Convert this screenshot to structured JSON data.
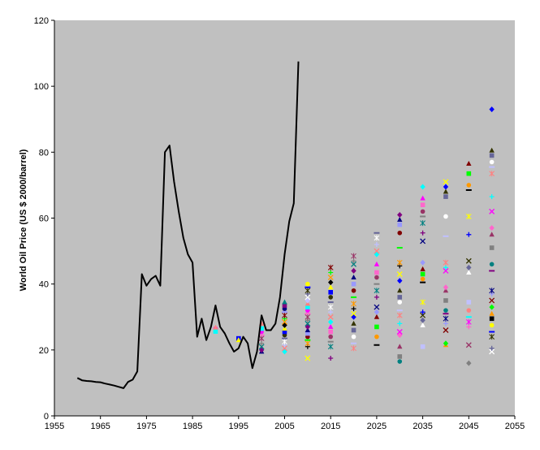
{
  "chart_data": {
    "type": "line",
    "title": "",
    "xlabel": "",
    "ylabel": "World Oil Price (US $ 2000/barrel)",
    "xlim": [
      1955,
      2055
    ],
    "ylim": [
      0,
      120
    ],
    "xticks": [
      1955,
      1965,
      1975,
      1985,
      1995,
      2005,
      2015,
      2025,
      2035,
      2045,
      2055
    ],
    "yticks": [
      0,
      20,
      40,
      60,
      80,
      100,
      120
    ],
    "grid": false,
    "legend": "none",
    "plot_background": "#c0c0c0",
    "series": [
      {
        "type": "line",
        "color": "#000000",
        "x": [
          1960,
          1961,
          1962,
          1963,
          1964,
          1965,
          1966,
          1967,
          1968,
          1969,
          1970,
          1971,
          1972,
          1973,
          1974,
          1975,
          1976,
          1977,
          1978,
          1979,
          1980,
          1981,
          1982,
          1983,
          1984,
          1985,
          1986,
          1987,
          1988,
          1989,
          1990,
          1991,
          1992,
          1993,
          1994,
          1995,
          1996,
          1997,
          1998,
          1999,
          2000,
          2001,
          2002,
          2003,
          2004,
          2005,
          2006,
          2007,
          2008
        ],
        "y": [
          11.5,
          10.8,
          10.6,
          10.5,
          10.3,
          10.2,
          9.8,
          9.5,
          9.2,
          8.8,
          8.4,
          10.3,
          11.0,
          13.5,
          43.0,
          39.5,
          41.5,
          42.5,
          39.5,
          80.0,
          82.0,
          71.0,
          62.0,
          54.0,
          49.0,
          46.5,
          24.0,
          29.5,
          23.0,
          27.0,
          33.5,
          27.0,
          25.0,
          22.0,
          19.5,
          20.5,
          24.0,
          22.0,
          14.5,
          19.5,
          30.5,
          26.0,
          26.0,
          28.0,
          36.0,
          49.0,
          59.0,
          64.5,
          107.5
        ]
      }
    ],
    "scenario_points": {
      "columns": [
        {
          "x": 1990,
          "y": [
            26.5,
            25.6,
            26.8
          ]
        },
        {
          "x": 1995,
          "y": [
            23.5,
            23.0
          ]
        },
        {
          "x": 2000,
          "y": [
            19.5,
            20.0,
            21.0,
            22.0,
            23.5,
            24.5,
            25.5,
            26.5,
            28.0
          ]
        },
        {
          "x": 2005,
          "y": [
            19.5,
            20.5,
            21.5,
            22.5,
            23.5,
            24.5,
            25.5,
            26.5,
            27.5,
            28.5,
            29.5,
            30.5,
            31.5,
            32.5,
            33.5,
            34.5
          ]
        },
        {
          "x": 2010,
          "y": [
            17.5,
            21.0,
            22.0,
            23.0,
            24.0,
            25.0,
            26.0,
            27.0,
            28.0,
            29.0,
            30.0,
            31.0,
            32.0,
            33.0,
            34.0,
            35.0,
            36.0,
            37.0,
            38.0,
            39.0,
            40.0
          ]
        },
        {
          "x": 2015,
          "y": [
            17.5,
            21.0,
            22.5,
            24.0,
            25.5,
            27.0,
            28.5,
            30.0,
            31.5,
            33.0,
            34.5,
            36.0,
            37.5,
            39.0,
            40.5,
            42.0,
            43.5,
            45.0
          ]
        },
        {
          "x": 2020,
          "y": [
            20.5,
            22.0,
            24.0,
            26.0,
            28.0,
            30.0,
            31.0,
            32.5,
            34.0,
            36.0,
            38.0,
            40.0,
            42.0,
            44.0,
            46.0,
            47.0,
            48.5
          ]
        },
        {
          "x": 2025,
          "y": [
            21.5,
            24.0,
            27.0,
            30.0,
            31.5,
            33.0,
            36.0,
            38.0,
            40.0,
            42.0,
            43.5,
            46.0,
            49.0,
            50.0,
            52.0,
            54.0,
            55.5
          ]
        },
        {
          "x": 2030,
          "y": [
            16.5,
            18.0,
            21.0,
            24.5,
            25.5,
            28.0,
            30.5,
            32.0,
            34.5,
            36.0,
            38.0,
            41.0,
            43.0,
            45.5,
            46.5,
            51.0,
            55.5,
            58.0,
            59.5,
            61.0
          ]
        },
        {
          "x": 2035,
          "y": [
            21.0,
            27.5,
            29.0,
            30.5,
            31.5,
            34.5,
            40.5,
            41.5,
            43.0,
            44.5,
            46.5,
            53.0,
            55.5,
            58.5,
            60.5,
            62.0,
            64.0,
            66.0,
            69.5
          ]
        },
        {
          "x": 2040,
          "y": [
            21.5,
            22.0,
            26.0,
            28.0,
            29.5,
            31.0,
            32.0,
            35.0,
            38.0,
            39.0,
            44.0,
            45.0,
            46.5,
            54.5,
            60.5,
            66.5,
            68.0,
            69.5,
            71.0
          ]
        },
        {
          "x": 2045,
          "y": [
            16.0,
            21.5,
            27.0,
            28.5,
            30.0,
            32.0,
            34.5,
            43.5,
            45.0,
            47.0,
            55.0,
            60.5,
            68.5,
            70.0,
            73.5,
            76.5
          ]
        },
        {
          "x": 2050,
          "y": [
            19.5,
            20.5,
            24.0,
            25.5,
            27.5,
            29.5,
            31.0,
            33.0,
            35.0,
            37.0,
            38.0,
            44.0,
            46.0,
            51.0,
            55.0,
            57.0,
            62.0,
            66.5,
            73.5,
            75.5,
            77.0,
            79.0,
            80.5,
            93.0
          ]
        }
      ],
      "marker_colors": [
        "#ff00ff",
        "#0000ff",
        "#000080",
        "#00ffff",
        "#ffff00",
        "#800080",
        "#ff8080",
        "#000000",
        "#008080",
        "#c0c0ff",
        "#ff9900",
        "#808080",
        "#ffffff",
        "#00ff00",
        "#993366",
        "#666699",
        "#800000",
        "#ff66cc",
        "#333300",
        "#9999ff"
      ]
    }
  }
}
